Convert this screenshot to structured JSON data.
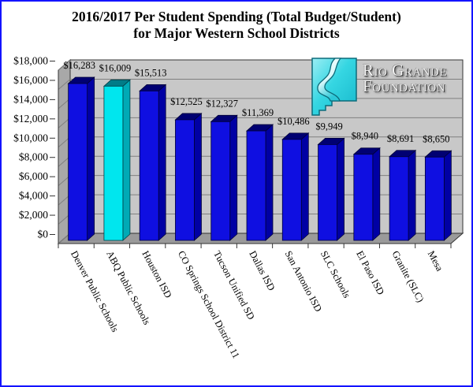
{
  "window": {
    "border_color": "#1414ff",
    "background": "#ffffff"
  },
  "title": {
    "line1": "2016/2017 Per Student Spending (Total Budget/Student)",
    "line2": "for Major Western School Districts"
  },
  "logo": {
    "name": "Rio Grande Foundation",
    "line1": "Rio Grande",
    "line2": "Foundation",
    "mark_color": "#2fd2de"
  },
  "chart_data": {
    "type": "bar",
    "title": "2016/2017 Per Student Spending (Total Budget/Student) for Major Western School Districts",
    "categories": [
      "Denver Public Schools",
      "ABQ Public Schools",
      "Houston ISD",
      "CO Springs School District 11",
      "Tucson Unified SD",
      "Dallas ISD",
      "San Antonio ISD",
      "SLC Schools",
      "El Paso ISD",
      "Granite (SLC)",
      "Mesa"
    ],
    "values": [
      16283,
      16009,
      15513,
      12525,
      12327,
      11369,
      10486,
      9949,
      8940,
      8691,
      8650
    ],
    "value_labels": [
      "$16,283",
      "$16,009",
      "$15,513",
      "$12,525",
      "$12,327",
      "$11,369",
      "$10,486",
      "$9,949",
      "$8,940",
      "$8,691",
      "$8,650"
    ],
    "highlight_index": 1,
    "y_tick_labels": [
      "$0",
      "$2,000",
      "$4,000",
      "$6,000",
      "$8,000",
      "$10,000",
      "$12,000",
      "$14,000",
      "$16,000",
      "$18,000"
    ],
    "ylim": [
      0,
      18000
    ],
    "y_tick_step": 2000,
    "xlabel": "",
    "ylabel": "",
    "grid": "on",
    "legend": "none",
    "view": "3d",
    "colors": {
      "bar_front": "#0f0fe1",
      "bar_top": "#000072",
      "bar_side": "#0000a4",
      "bar_outline": "#000038",
      "highlight_front": "#00e6ee",
      "highlight_top": "#007c88",
      "highlight_side": "#00aab6",
      "highlight_outline": "#004048",
      "back_wall": "#c8c8c8",
      "side_wall": "#a8a8a8",
      "floor": "#9a9a9a",
      "gridline": "#808080",
      "outline": "#333333",
      "text": "#000000"
    }
  }
}
